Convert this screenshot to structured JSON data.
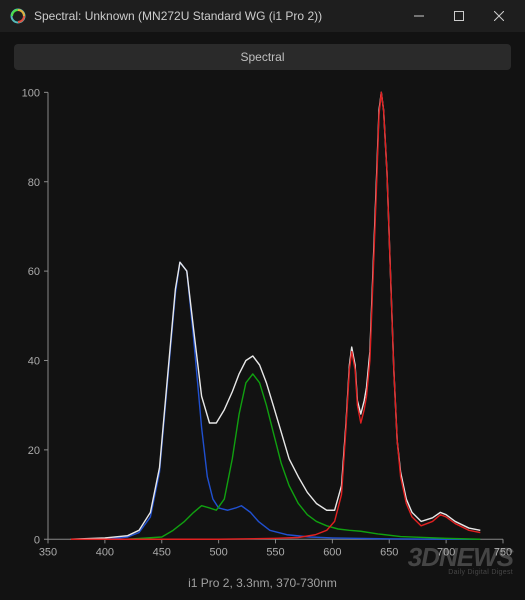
{
  "window": {
    "title": "Spectral: Unknown (MN272U Standard WG (i1 Pro 2))",
    "minimize_label": "Minimize",
    "maximize_label": "Maximize",
    "close_label": "Close"
  },
  "tab": {
    "label": "Spectral"
  },
  "caption": "i1 Pro 2, 3.3nm, 370-730nm",
  "watermark": {
    "big": "3DNEWS",
    "small": "Daily Digital Digest"
  },
  "chart": {
    "type": "line",
    "background_color": "#121212",
    "axis_color": "#888888",
    "label_color": "#aaaaaa",
    "label_fontsize": 11,
    "xlim": [
      350,
      750
    ],
    "ylim": [
      0,
      100
    ],
    "xtick_step": 50,
    "ytick_step": 20,
    "xticks": [
      350,
      400,
      450,
      500,
      550,
      600,
      650,
      700,
      750
    ],
    "yticks": [
      0,
      20,
      40,
      60,
      80,
      100
    ],
    "line_width": 1.4,
    "series": {
      "blue": {
        "color": "#2050d0",
        "points": [
          [
            370,
            0
          ],
          [
            400,
            0
          ],
          [
            420,
            0.5
          ],
          [
            430,
            1.5
          ],
          [
            440,
            5
          ],
          [
            448,
            15
          ],
          [
            455,
            35
          ],
          [
            462,
            55
          ],
          [
            466,
            62
          ],
          [
            472,
            60
          ],
          [
            478,
            45
          ],
          [
            485,
            25
          ],
          [
            490,
            14
          ],
          [
            495,
            9
          ],
          [
            500,
            7
          ],
          [
            508,
            6.5
          ],
          [
            515,
            7
          ],
          [
            520,
            7.5
          ],
          [
            528,
            6
          ],
          [
            535,
            4
          ],
          [
            545,
            2
          ],
          [
            560,
            1
          ],
          [
            580,
            0.5
          ],
          [
            600,
            0.3
          ],
          [
            620,
            0.2
          ],
          [
            650,
            0.1
          ],
          [
            700,
            0
          ],
          [
            730,
            0
          ]
        ]
      },
      "green": {
        "color": "#10a010",
        "points": [
          [
            370,
            0
          ],
          [
            420,
            0
          ],
          [
            450,
            0.5
          ],
          [
            460,
            2
          ],
          [
            470,
            4
          ],
          [
            478,
            6
          ],
          [
            485,
            7.5
          ],
          [
            492,
            7
          ],
          [
            498,
            6.5
          ],
          [
            505,
            9
          ],
          [
            512,
            18
          ],
          [
            518,
            28
          ],
          [
            524,
            35
          ],
          [
            530,
            37
          ],
          [
            536,
            35
          ],
          [
            542,
            30
          ],
          [
            548,
            24
          ],
          [
            555,
            17
          ],
          [
            562,
            12
          ],
          [
            570,
            8
          ],
          [
            578,
            5.5
          ],
          [
            586,
            4
          ],
          [
            595,
            3
          ],
          [
            605,
            2.3
          ],
          [
            615,
            2
          ],
          [
            625,
            1.8
          ],
          [
            640,
            1.2
          ],
          [
            660,
            0.6
          ],
          [
            700,
            0.2
          ],
          [
            730,
            0
          ]
        ]
      },
      "red": {
        "color": "#e02020",
        "points": [
          [
            370,
            0
          ],
          [
            500,
            0
          ],
          [
            550,
            0.2
          ],
          [
            570,
            0.4
          ],
          [
            585,
            1
          ],
          [
            595,
            2
          ],
          [
            602,
            4
          ],
          [
            608,
            10
          ],
          [
            612,
            25
          ],
          [
            615,
            38
          ],
          [
            617,
            42
          ],
          [
            620,
            38
          ],
          [
            622,
            30
          ],
          [
            625,
            26
          ],
          [
            628,
            29
          ],
          [
            630,
            32
          ],
          [
            633,
            40
          ],
          [
            636,
            60
          ],
          [
            639,
            80
          ],
          [
            641,
            95
          ],
          [
            643,
            100
          ],
          [
            645,
            96
          ],
          [
            648,
            82
          ],
          [
            651,
            60
          ],
          [
            654,
            38
          ],
          [
            657,
            22
          ],
          [
            660,
            14
          ],
          [
            665,
            8
          ],
          [
            670,
            5
          ],
          [
            678,
            3
          ],
          [
            688,
            4
          ],
          [
            695,
            5.5
          ],
          [
            700,
            5
          ],
          [
            708,
            3.5
          ],
          [
            720,
            2
          ],
          [
            730,
            1.5
          ]
        ]
      },
      "white": {
        "color": "#e8e8e8",
        "points": [
          [
            370,
            0
          ],
          [
            400,
            0.3
          ],
          [
            420,
            0.8
          ],
          [
            430,
            2
          ],
          [
            440,
            6
          ],
          [
            448,
            16
          ],
          [
            455,
            36
          ],
          [
            462,
            56
          ],
          [
            466,
            62
          ],
          [
            472,
            60
          ],
          [
            478,
            47
          ],
          [
            485,
            32
          ],
          [
            492,
            26
          ],
          [
            498,
            26
          ],
          [
            505,
            29
          ],
          [
            512,
            33
          ],
          [
            518,
            37
          ],
          [
            524,
            40
          ],
          [
            530,
            41
          ],
          [
            536,
            39
          ],
          [
            542,
            35
          ],
          [
            548,
            30
          ],
          [
            555,
            24
          ],
          [
            562,
            18
          ],
          [
            570,
            14
          ],
          [
            578,
            10.5
          ],
          [
            586,
            8
          ],
          [
            595,
            6.5
          ],
          [
            602,
            6.5
          ],
          [
            608,
            12
          ],
          [
            612,
            26
          ],
          [
            615,
            39
          ],
          [
            617,
            43
          ],
          [
            620,
            39
          ],
          [
            622,
            31
          ],
          [
            625,
            28
          ],
          [
            628,
            31
          ],
          [
            630,
            34
          ],
          [
            633,
            42
          ],
          [
            636,
            62
          ],
          [
            639,
            82
          ],
          [
            641,
            96
          ],
          [
            643,
            100
          ],
          [
            645,
            96
          ],
          [
            648,
            82
          ],
          [
            651,
            60
          ],
          [
            654,
            38
          ],
          [
            657,
            22
          ],
          [
            660,
            15
          ],
          [
            665,
            9
          ],
          [
            670,
            6
          ],
          [
            678,
            4
          ],
          [
            688,
            4.8
          ],
          [
            695,
            6
          ],
          [
            700,
            5.5
          ],
          [
            708,
            4
          ],
          [
            720,
            2.5
          ],
          [
            730,
            2
          ]
        ]
      }
    }
  }
}
